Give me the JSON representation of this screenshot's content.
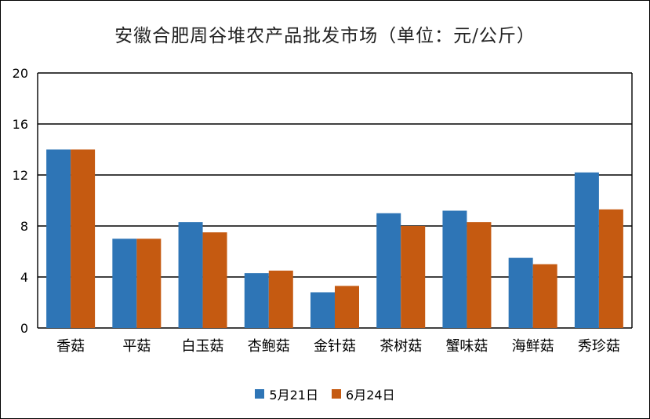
{
  "chart_data": {
    "type": "bar",
    "title": "安徽合肥周谷堆农产品批发市场（单位：元/公斤）",
    "categories": [
      "香菇",
      "平菇",
      "白玉菇",
      "杏鲍菇",
      "金针菇",
      "茶树菇",
      "蟹味菇",
      "海鲜菇",
      "秀珍菇"
    ],
    "series": [
      {
        "name": "5月21日",
        "color": "#2E75B6",
        "values": [
          14,
          7,
          8.3,
          4.3,
          2.8,
          9,
          9.2,
          5.5,
          12.2
        ]
      },
      {
        "name": "6月24日",
        "color": "#C55A11",
        "values": [
          14,
          7,
          7.5,
          4.5,
          3.3,
          8,
          8.3,
          5,
          9.3
        ]
      }
    ],
    "ylim": [
      0,
      20
    ],
    "yticks": [
      0,
      4,
      8,
      12,
      16,
      20
    ],
    "grid": true,
    "legend_position": "bottom"
  }
}
